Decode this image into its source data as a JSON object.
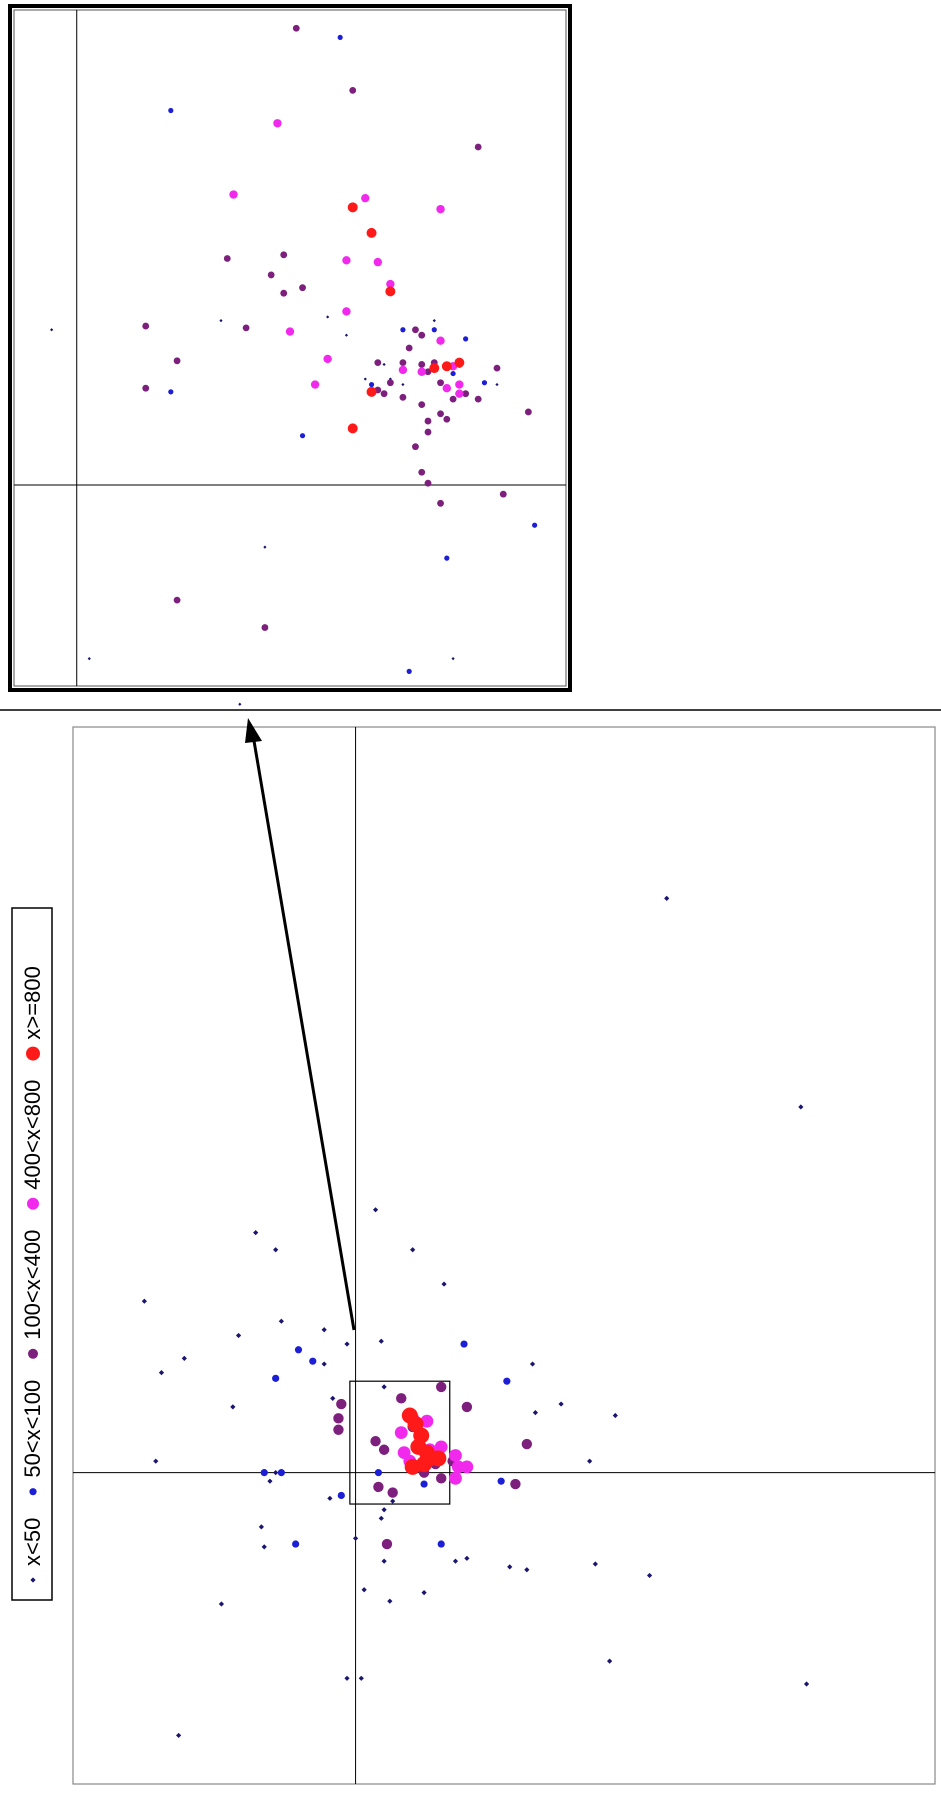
{
  "chart_data": [
    {
      "type": "scatter",
      "role": "inset-zoom",
      "title": "",
      "xlabel": "",
      "ylabel": "",
      "xlim": [
        -0.5,
        3.9
      ],
      "ylim": [
        -1.1,
        2.6
      ],
      "grid": false,
      "axes_lines": {
        "x": 0,
        "y": 0
      },
      "series": [
        {
          "name": "x<50",
          "color": "#1a1570",
          "points": [
            [
              -0.2,
              0.85
            ],
            [
              1.15,
              0.9
            ],
            [
              2.0,
              0.92
            ],
            [
              2.15,
              0.82
            ],
            [
              3.35,
              0.55
            ],
            [
              2.3,
              0.58
            ],
            [
              2.6,
              0.55
            ],
            [
              2.5,
              0.58
            ],
            [
              1.5,
              -0.34
            ],
            [
              0.1,
              -0.95
            ],
            [
              3.0,
              -0.95
            ],
            [
              1.3,
              -1.2
            ],
            [
              2.45,
              0.66
            ],
            [
              2.85,
              0.9
            ]
          ]
        },
        {
          "name": "50<x<100",
          "color": "#1d1fd6",
          "points": [
            [
              0.75,
              2.05
            ],
            [
              2.1,
              2.45
            ],
            [
              0.75,
              0.51
            ],
            [
              1.8,
              0.27
            ],
            [
              2.35,
              0.55
            ],
            [
              2.6,
              0.85
            ],
            [
              2.85,
              0.85
            ],
            [
              3.1,
              0.8
            ],
            [
              3.0,
              0.61
            ],
            [
              3.25,
              0.56
            ],
            [
              2.95,
              -0.4
            ],
            [
              3.65,
              -0.22
            ],
            [
              2.65,
              -1.02
            ]
          ]
        },
        {
          "name": "100<x<400",
          "color": "#7d1f7c",
          "points": [
            [
              1.75,
              2.5
            ],
            [
              2.2,
              2.16
            ],
            [
              3.2,
              1.85
            ],
            [
              1.2,
              1.24
            ],
            [
              1.65,
              1.26
            ],
            [
              1.55,
              1.15
            ],
            [
              1.65,
              1.05
            ],
            [
              1.8,
              1.08
            ],
            [
              0.55,
              0.87
            ],
            [
              0.8,
              0.68
            ],
            [
              0.55,
              0.53
            ],
            [
              1.35,
              0.86
            ],
            [
              2.7,
              0.85
            ],
            [
              2.75,
              0.82
            ],
            [
              2.65,
              0.75
            ],
            [
              2.4,
              0.67
            ],
            [
              2.6,
              0.67
            ],
            [
              2.75,
              0.66
            ],
            [
              2.8,
              0.62
            ],
            [
              3.05,
              0.66
            ],
            [
              3.35,
              0.64
            ],
            [
              3.6,
              0.4
            ],
            [
              2.45,
              0.5
            ],
            [
              2.6,
              0.48
            ],
            [
              2.75,
              0.44
            ],
            [
              2.9,
              0.56
            ],
            [
              3.0,
              0.47
            ],
            [
              3.1,
              0.5
            ],
            [
              3.2,
              0.47
            ],
            [
              2.8,
              0.35
            ],
            [
              2.9,
              0.39
            ],
            [
              2.8,
              0.29
            ],
            [
              2.95,
              0.36
            ],
            [
              2.4,
              0.52
            ],
            [
              2.5,
              0.56
            ],
            [
              2.7,
              0.21
            ],
            [
              2.75,
              0.07
            ],
            [
              3.4,
              -0.05
            ],
            [
              2.9,
              -0.1
            ],
            [
              0.8,
              -0.63
            ],
            [
              1.5,
              -0.78
            ],
            [
              2.85,
              0.67
            ],
            [
              2.8,
              0.01
            ]
          ]
        },
        {
          "name": "400<x<800",
          "color": "#f029ed",
          "points": [
            [
              1.6,
              1.98
            ],
            [
              1.25,
              1.59
            ],
            [
              2.3,
              1.57
            ],
            [
              2.9,
              1.51
            ],
            [
              2.15,
              1.23
            ],
            [
              2.4,
              1.22
            ],
            [
              2.5,
              1.1
            ],
            [
              2.15,
              0.95
            ],
            [
              1.7,
              0.84
            ],
            [
              2.0,
              0.69
            ],
            [
              2.6,
              0.63
            ],
            [
              1.9,
              0.55
            ],
            [
              2.9,
              0.79
            ],
            [
              3.0,
              0.65
            ],
            [
              3.05,
              0.5
            ],
            [
              2.95,
              0.53
            ],
            [
              3.05,
              0.55
            ],
            [
              2.75,
              0.62
            ]
          ]
        },
        {
          "name": "x>=800",
          "color": "#ff1a1a",
          "points": [
            [
              2.2,
              1.52
            ],
            [
              2.35,
              1.38
            ],
            [
              2.5,
              1.06
            ],
            [
              2.35,
              0.51
            ],
            [
              2.2,
              0.31
            ],
            [
              2.95,
              0.65
            ],
            [
              3.05,
              0.67
            ],
            [
              2.85,
              0.64
            ]
          ]
        }
      ]
    },
    {
      "type": "scatter",
      "role": "main",
      "title": "",
      "xlabel": "",
      "ylabel": "",
      "xlim": [
        -9.9,
        20.3
      ],
      "ylim": [
        -10.9,
        26.1
      ],
      "grid": false,
      "axes_lines": {
        "x": 0,
        "y": 0
      },
      "legend": {
        "placement": "left, rotated vertical",
        "entries": [
          "x<50",
          "50<x<100",
          "100<x<400",
          "400<x<800",
          "x>=800"
        ],
        "colors": [
          "#1a1570",
          "#1d1fd6",
          "#7d1f7c",
          "#f029ed",
          "#ff1a1a"
        ]
      },
      "zoom_box": {
        "x": [
          -0.2,
          3.3
        ],
        "y": [
          -1.1,
          3.2
        ]
      },
      "series": [
        {
          "name": "x<50",
          "color": "#1a1570",
          "points": [
            [
              10.9,
              20.1
            ],
            [
              15.6,
              12.8
            ],
            [
              0.7,
              9.2
            ],
            [
              -3.5,
              8.4
            ],
            [
              -2.8,
              7.8
            ],
            [
              2.0,
              7.8
            ],
            [
              3.1,
              6.6
            ],
            [
              -7.4,
              6.0
            ],
            [
              -4.1,
              4.8
            ],
            [
              -2.6,
              5.3
            ],
            [
              -1.1,
              5.0
            ],
            [
              -0.3,
              4.5
            ],
            [
              0.9,
              4.6
            ],
            [
              -6.0,
              4.0
            ],
            [
              -6.8,
              3.5
            ],
            [
              -4.3,
              2.3
            ],
            [
              -1.1,
              3.8
            ],
            [
              -0.8,
              2.6
            ],
            [
              1.0,
              3.0
            ],
            [
              6.2,
              3.8
            ],
            [
              6.3,
              2.1
            ],
            [
              7.2,
              2.4
            ],
            [
              9.1,
              2.0
            ],
            [
              8.2,
              0.4
            ],
            [
              -2.8,
              0.0
            ],
            [
              -3.0,
              -0.3
            ],
            [
              -0.9,
              -0.9
            ],
            [
              -3.3,
              -1.9
            ],
            [
              1.0,
              -1.3
            ],
            [
              1.3,
              -1.0
            ],
            [
              0.9,
              -1.6
            ],
            [
              -3.2,
              -2.6
            ],
            [
              0.0,
              -2.3
            ],
            [
              0.3,
              -4.1
            ],
            [
              1.0,
              -3.1
            ],
            [
              1.2,
              -4.5
            ],
            [
              2.4,
              -4.2
            ],
            [
              3.5,
              -3.1
            ],
            [
              3.9,
              -3.0
            ],
            [
              5.4,
              -3.3
            ],
            [
              6.0,
              -3.4
            ],
            [
              8.4,
              -3.2
            ],
            [
              10.3,
              -3.6
            ],
            [
              -4.7,
              -4.6
            ],
            [
              -6.2,
              -9.2
            ],
            [
              -0.3,
              -7.2
            ],
            [
              0.2,
              -7.2
            ],
            [
              8.9,
              -6.6
            ],
            [
              15.8,
              -7.4
            ],
            [
              -7.0,
              0.4
            ]
          ]
        },
        {
          "name": "50<x<100",
          "color": "#1d1fd6",
          "points": [
            [
              -2.0,
              4.3
            ],
            [
              -1.5,
              3.9
            ],
            [
              -2.8,
              3.3
            ],
            [
              3.8,
              4.5
            ],
            [
              5.3,
              3.2
            ],
            [
              -3.2,
              0.0
            ],
            [
              -2.6,
              0.0
            ],
            [
              -0.5,
              -0.8
            ],
            [
              2.4,
              -0.4
            ],
            [
              5.1,
              -0.3
            ],
            [
              -2.1,
              -2.5
            ],
            [
              3.0,
              -2.5
            ],
            [
              1.8,
              1.9
            ],
            [
              0.8,
              0.0
            ]
          ]
        },
        {
          "name": "100<x<400",
          "color": "#7d1f7c",
          "points": [
            [
              -0.5,
              2.4
            ],
            [
              -0.6,
              1.9
            ],
            [
              -0.6,
              1.5
            ],
            [
              1.6,
              2.6
            ],
            [
              3.0,
              3.0
            ],
            [
              3.9,
              2.3
            ],
            [
              2.4,
              0.0
            ],
            [
              2.8,
              0.3
            ],
            [
              3.4,
              0.4
            ],
            [
              3.0,
              -0.2
            ],
            [
              0.8,
              -0.5
            ],
            [
              1.3,
              -0.7
            ],
            [
              1.1,
              -2.5
            ],
            [
              6.0,
              1.0
            ],
            [
              5.6,
              -0.4
            ],
            [
              0.7,
              1.1
            ],
            [
              1.0,
              0.8
            ],
            [
              2.0,
              1.6
            ]
          ]
        },
        {
          "name": "400<x<800",
          "color": "#f029ed",
          "points": [
            [
              1.6,
              1.4
            ],
            [
              2.0,
              1.9
            ],
            [
              2.5,
              1.8
            ],
            [
              1.7,
              0.7
            ],
            [
              1.9,
              0.4
            ],
            [
              2.6,
              0.8
            ],
            [
              3.0,
              0.9
            ],
            [
              3.5,
              0.6
            ],
            [
              3.6,
              0.2
            ],
            [
              3.9,
              0.2
            ],
            [
              3.5,
              -0.2
            ]
          ]
        },
        {
          "name": "x>=800",
          "color": "#ff1a1a",
          "points": [
            [
              1.9,
              2.0
            ],
            [
              2.1,
              1.7
            ],
            [
              2.3,
              1.3
            ],
            [
              2.2,
              0.9
            ],
            [
              2.5,
              0.7
            ],
            [
              2.9,
              0.5
            ],
            [
              2.4,
              0.3
            ],
            [
              2.0,
              0.2
            ],
            [
              2.6,
              0.5
            ]
          ]
        }
      ]
    }
  ]
}
